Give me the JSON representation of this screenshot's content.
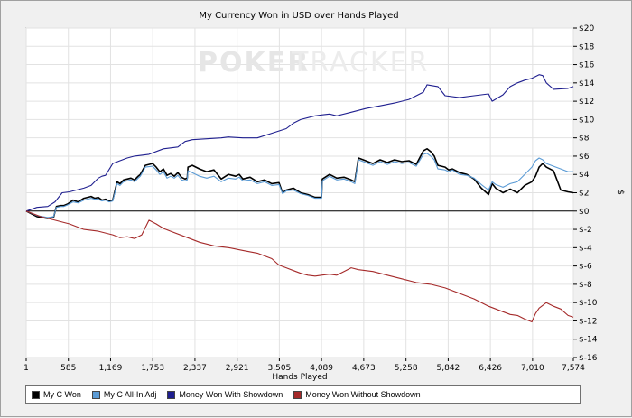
{
  "chart_data": {
    "type": "line",
    "title": "My Currency Won in USD over Hands Played",
    "xlabel": "Hands Played",
    "ylabel": "$",
    "watermark": {
      "left": "POKER",
      "right": "TRACKER"
    },
    "x_ticks": [
      "1",
      "585",
      "1,169",
      "1,753",
      "2,337",
      "2,921",
      "3,505",
      "4,089",
      "4,673",
      "5,258",
      "5,842",
      "6,426",
      "7,010",
      "7,574"
    ],
    "x_tick_values": [
      1,
      585,
      1169,
      1753,
      2337,
      2921,
      3505,
      4089,
      4673,
      5258,
      5842,
      6426,
      7010,
      7574
    ],
    "xlim": [
      1,
      7574
    ],
    "ylim": [
      -16,
      20
    ],
    "y_ticks": [
      {
        "value": 20,
        "label": "$20"
      },
      {
        "value": 18,
        "label": "$18"
      },
      {
        "value": 16,
        "label": "$16"
      },
      {
        "value": 14,
        "label": "$14"
      },
      {
        "value": 12,
        "label": "$12"
      },
      {
        "value": 10,
        "label": "$10"
      },
      {
        "value": 8,
        "label": "$8"
      },
      {
        "value": 6,
        "label": "$6"
      },
      {
        "value": 4,
        "label": "$4"
      },
      {
        "value": 2,
        "label": "$2"
      },
      {
        "value": 0,
        "label": "$0"
      },
      {
        "value": -2,
        "label": "$-2"
      },
      {
        "value": -4,
        "label": "$-4"
      },
      {
        "value": -6,
        "label": "$-6"
      },
      {
        "value": -8,
        "label": "$-8"
      },
      {
        "value": -10,
        "label": "$-10"
      },
      {
        "value": -12,
        "label": "$-12"
      },
      {
        "value": -14,
        "label": "$-14"
      },
      {
        "value": -16,
        "label": "$-16"
      }
    ],
    "grid": true,
    "legend_position": "bottom",
    "series": [
      {
        "name": "My C Won",
        "color": "#000000",
        "x": [
          1,
          150,
          300,
          380,
          420,
          480,
          520,
          580,
          650,
          720,
          800,
          900,
          950,
          1000,
          1050,
          1100,
          1150,
          1200,
          1260,
          1300,
          1350,
          1400,
          1450,
          1500,
          1550,
          1580,
          1650,
          1750,
          1800,
          1850,
          1900,
          1950,
          2000,
          2050,
          2100,
          2150,
          2200,
          2230,
          2240,
          2300,
          2400,
          2500,
          2600,
          2700,
          2800,
          2900,
          2950,
          3000,
          3100,
          3200,
          3300,
          3400,
          3500,
          3550,
          3600,
          3700,
          3800,
          3900,
          4000,
          4089,
          4100,
          4200,
          4300,
          4400,
          4500,
          4550,
          4600,
          4700,
          4800,
          4900,
          5000,
          5100,
          5200,
          5300,
          5400,
          5500,
          5550,
          5600,
          5650,
          5700,
          5800,
          5850,
          5900,
          6000,
          6100,
          6200,
          6300,
          6400,
          6450,
          6500,
          6600,
          6700,
          6800,
          6900,
          7000,
          7050,
          7100,
          7150,
          7200,
          7300,
          7400,
          7500,
          7574
        ],
        "y": [
          0,
          -0.6,
          -0.8,
          -0.7,
          0.5,
          0.6,
          0.6,
          0.8,
          1.2,
          1.0,
          1.4,
          1.6,
          1.4,
          1.5,
          1.2,
          1.3,
          1.1,
          1.2,
          3.2,
          3.0,
          3.4,
          3.5,
          3.6,
          3.4,
          3.8,
          4.0,
          5.0,
          5.2,
          4.8,
          4.3,
          4.6,
          3.9,
          4.1,
          3.8,
          4.2,
          3.7,
          3.5,
          3.6,
          4.8,
          5.0,
          4.6,
          4.3,
          4.5,
          3.5,
          4.0,
          3.8,
          4.0,
          3.5,
          3.7,
          3.2,
          3.4,
          3.0,
          3.1,
          2.0,
          2.3,
          2.5,
          2.0,
          1.8,
          1.5,
          1.5,
          3.5,
          4.0,
          3.6,
          3.7,
          3.4,
          3.2,
          5.8,
          5.5,
          5.2,
          5.6,
          5.3,
          5.6,
          5.4,
          5.5,
          5.1,
          6.6,
          6.8,
          6.5,
          6.0,
          5.0,
          4.8,
          4.5,
          4.6,
          4.2,
          4.0,
          3.5,
          2.5,
          1.8,
          3.0,
          2.5,
          2.0,
          2.4,
          2.0,
          2.8,
          3.2,
          3.8,
          4.8,
          5.2,
          4.8,
          4.4,
          2.3,
          2.1,
          2.0
        ]
      },
      {
        "name": "My C All-In Adj",
        "color": "#5b9bd5",
        "x": [
          1,
          150,
          300,
          380,
          420,
          480,
          520,
          580,
          650,
          720,
          800,
          900,
          950,
          1000,
          1050,
          1100,
          1150,
          1200,
          1260,
          1300,
          1350,
          1400,
          1450,
          1500,
          1550,
          1580,
          1650,
          1750,
          1800,
          1850,
          1900,
          1950,
          2000,
          2050,
          2100,
          2150,
          2200,
          2230,
          2240,
          2300,
          2400,
          2500,
          2600,
          2700,
          2800,
          2900,
          2950,
          3000,
          3100,
          3200,
          3300,
          3400,
          3500,
          3550,
          3600,
          3700,
          3800,
          3900,
          4000,
          4089,
          4100,
          4200,
          4300,
          4400,
          4500,
          4550,
          4600,
          4700,
          4800,
          4900,
          5000,
          5100,
          5200,
          5300,
          5400,
          5500,
          5550,
          5600,
          5650,
          5700,
          5800,
          5850,
          5900,
          6000,
          6100,
          6200,
          6300,
          6400,
          6450,
          6500,
          6600,
          6700,
          6800,
          6900,
          7000,
          7050,
          7100,
          7150,
          7200,
          7300,
          7400,
          7500,
          7574
        ],
        "y": [
          0,
          -0.5,
          -0.7,
          -0.6,
          0.4,
          0.5,
          0.5,
          0.7,
          1.0,
          0.9,
          1.2,
          1.4,
          1.3,
          1.3,
          1.1,
          1.2,
          1.0,
          1.1,
          3.0,
          2.8,
          3.2,
          3.3,
          3.4,
          3.2,
          3.6,
          3.8,
          4.8,
          4.9,
          4.5,
          4.0,
          4.3,
          3.6,
          3.8,
          3.6,
          3.9,
          3.4,
          3.3,
          3.4,
          4.4,
          4.2,
          3.8,
          3.6,
          3.8,
          3.2,
          3.6,
          3.5,
          3.7,
          3.3,
          3.4,
          3.0,
          3.2,
          2.8,
          2.9,
          1.9,
          2.2,
          2.3,
          1.9,
          1.7,
          1.4,
          1.4,
          3.3,
          3.8,
          3.4,
          3.5,
          3.2,
          3.0,
          5.6,
          5.3,
          5.0,
          5.4,
          5.1,
          5.4,
          5.2,
          5.3,
          4.9,
          6.2,
          6.3,
          6.0,
          5.6,
          4.6,
          4.5,
          4.3,
          4.5,
          4.0,
          3.9,
          3.6,
          2.9,
          2.3,
          3.2,
          2.9,
          2.6,
          3.0,
          3.2,
          4.0,
          4.8,
          5.5,
          5.8,
          5.6,
          5.2,
          4.9,
          4.6,
          4.3,
          4.3
        ]
      },
      {
        "name": "Money Won With Showdown",
        "color": "#1f1f8f",
        "x": [
          1,
          150,
          300,
          400,
          500,
          600,
          800,
          900,
          1000,
          1050,
          1100,
          1200,
          1300,
          1400,
          1500,
          1700,
          1900,
          2100,
          2200,
          2300,
          2500,
          2700,
          2800,
          3000,
          3200,
          3400,
          3600,
          3700,
          3800,
          4000,
          4089,
          4200,
          4300,
          4500,
          4700,
          4900,
          5100,
          5300,
          5500,
          5550,
          5700,
          5800,
          6000,
          6200,
          6400,
          6450,
          6600,
          6700,
          6800,
          6900,
          7000,
          7100,
          7150,
          7200,
          7300,
          7500,
          7574
        ],
        "y": [
          0,
          0.4,
          0.5,
          1.0,
          2.0,
          2.1,
          2.5,
          2.8,
          3.6,
          3.8,
          3.9,
          5.2,
          5.5,
          5.8,
          6.0,
          6.2,
          6.8,
          7.0,
          7.6,
          7.8,
          7.9,
          8.0,
          8.1,
          8.0,
          8.0,
          8.5,
          9.0,
          9.6,
          10.0,
          10.4,
          10.5,
          10.6,
          10.4,
          10.8,
          11.2,
          11.5,
          11.8,
          12.2,
          13.0,
          13.8,
          13.6,
          12.6,
          12.4,
          12.6,
          12.8,
          12.0,
          12.7,
          13.6,
          14.0,
          14.3,
          14.5,
          14.9,
          14.8,
          14.0,
          13.3,
          13.4,
          13.6
        ]
      },
      {
        "name": "Money Won Without Showdown",
        "color": "#a52a2a",
        "x": [
          1,
          200,
          400,
          600,
          800,
          1000,
          1200,
          1300,
          1400,
          1500,
          1600,
          1700,
          1800,
          1900,
          2000,
          2200,
          2400,
          2600,
          2800,
          3000,
          3200,
          3400,
          3500,
          3600,
          3700,
          3800,
          3900,
          4000,
          4089,
          4200,
          4300,
          4400,
          4500,
          4600,
          4800,
          5000,
          5200,
          5400,
          5600,
          5800,
          6000,
          6200,
          6400,
          6600,
          6700,
          6800,
          6900,
          7000,
          7050,
          7100,
          7200,
          7300,
          7400,
          7500,
          7574
        ],
        "y": [
          0,
          -0.6,
          -1.0,
          -1.4,
          -2.0,
          -2.2,
          -2.6,
          -2.9,
          -2.8,
          -3.0,
          -2.6,
          -1.0,
          -1.4,
          -1.9,
          -2.2,
          -2.8,
          -3.4,
          -3.8,
          -4.0,
          -4.3,
          -4.6,
          -5.2,
          -5.9,
          -6.2,
          -6.5,
          -6.8,
          -7.0,
          -7.1,
          -7.0,
          -6.9,
          -7.0,
          -6.6,
          -6.2,
          -6.4,
          -6.6,
          -7.0,
          -7.4,
          -7.8,
          -8.0,
          -8.4,
          -9.0,
          -9.6,
          -10.4,
          -11.0,
          -11.3,
          -11.4,
          -11.8,
          -12.1,
          -11.2,
          -10.6,
          -10.0,
          -10.4,
          -10.7,
          -11.4,
          -11.6
        ]
      }
    ]
  }
}
